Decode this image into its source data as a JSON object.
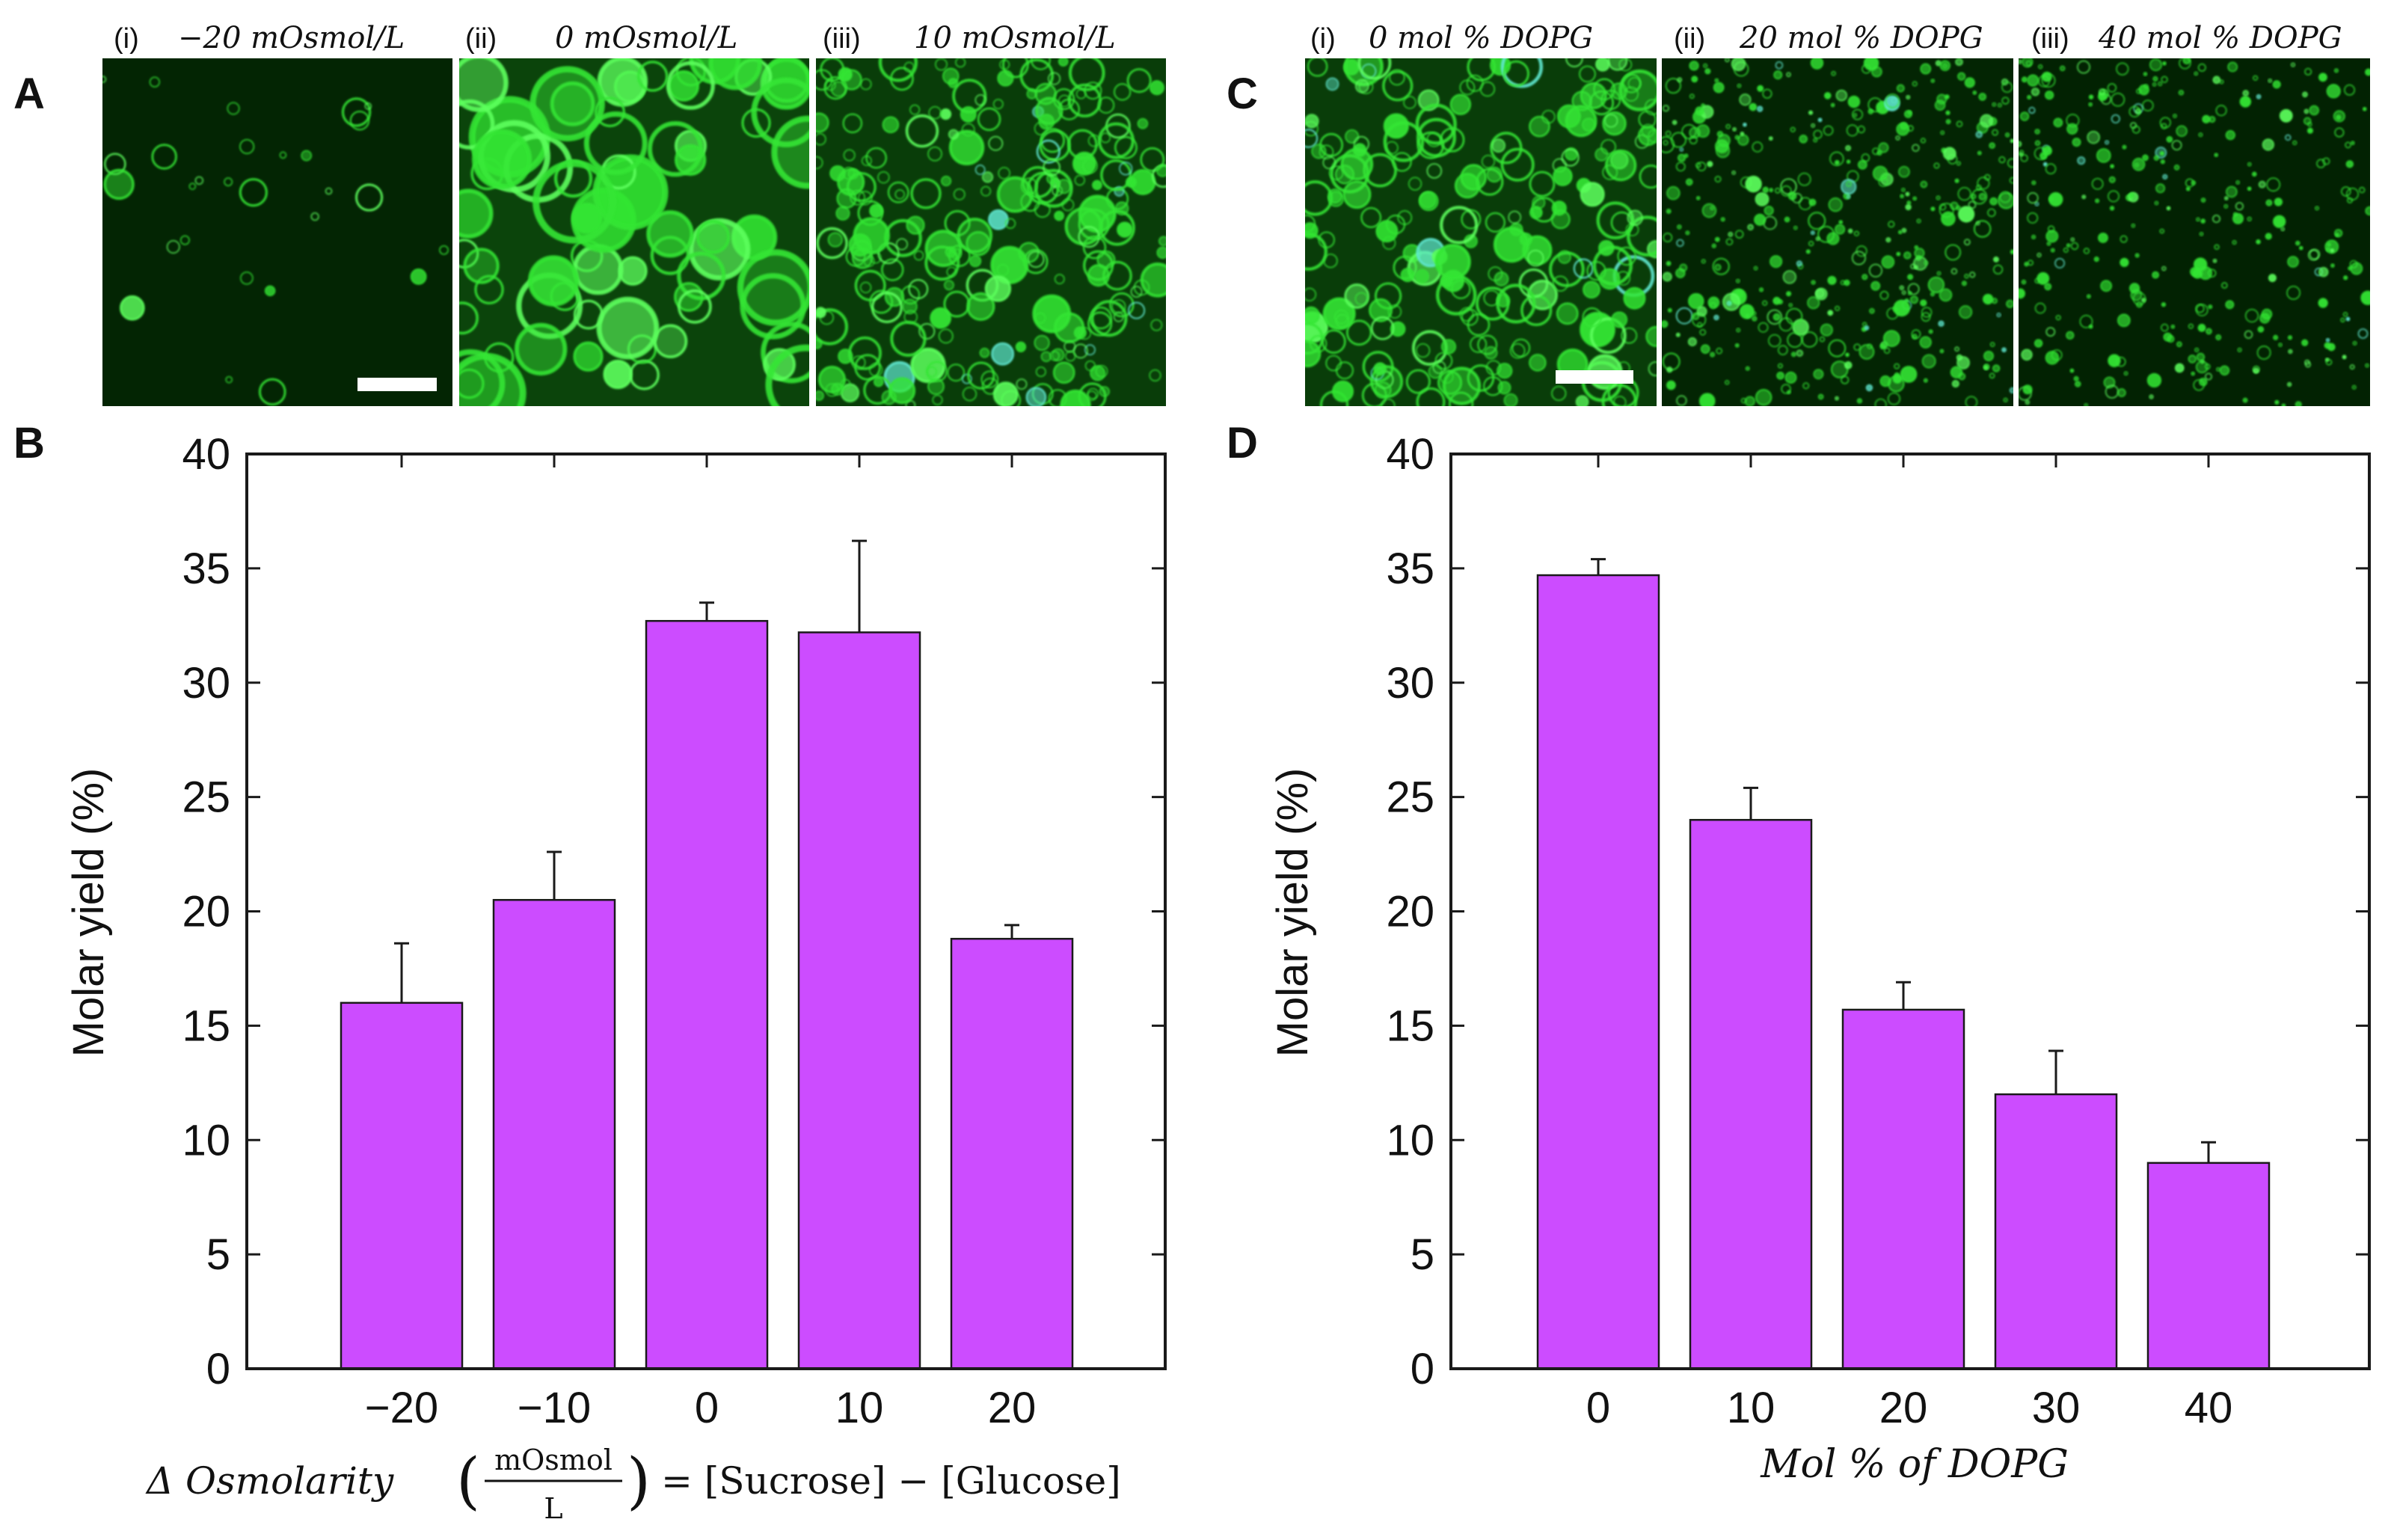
{
  "colors": {
    "bar": "#cc4cff",
    "bar_stroke": "#1a1a1a",
    "axis": "#1a1a1a",
    "micrograph_bg": "#001900",
    "vesicle": "#33e633",
    "vesicle_bright": "#5cff5c",
    "vesicle_cyan": "#5fe8d0",
    "scalebar": "#ffffff"
  },
  "panel_a": {
    "letter": "A",
    "images": [
      {
        "index": "(i)",
        "label": "−20 mOsmol/L"
      },
      {
        "index": "(ii)",
        "label": "0 mOsmol/L"
      },
      {
        "index": "(iii)",
        "label": "10 mOsmol/L"
      }
    ]
  },
  "panel_c": {
    "letter": "C",
    "images": [
      {
        "index": "(i)",
        "label": "0 mol % DOPG"
      },
      {
        "index": "(ii)",
        "label": "20 mol % DOPG"
      },
      {
        "index": "(iii)",
        "label": "40 mol % DOPG"
      }
    ]
  },
  "chart_data": [
    {
      "panel": "B",
      "type": "bar",
      "categories": [
        "−20",
        "−10",
        "0",
        "10",
        "20"
      ],
      "values": [
        16.0,
        20.5,
        32.7,
        32.2,
        18.8
      ],
      "errors": [
        2.6,
        2.1,
        0.8,
        4.0,
        0.6
      ],
      "ylim": [
        0,
        40
      ],
      "yticks": [
        0,
        5,
        10,
        15,
        20,
        25,
        30,
        35,
        40
      ],
      "ylabel": "Molar yield (%)",
      "xlabel": {
        "prefix": "Δ Osmolarity",
        "frac_num": "mOsmol",
        "frac_den": "L",
        "suffix": "= [Sucrose] − [Glucose]"
      }
    },
    {
      "panel": "D",
      "type": "bar",
      "categories": [
        "0",
        "10",
        "20",
        "30",
        "40"
      ],
      "values": [
        34.7,
        24.0,
        15.7,
        12.0,
        9.0
      ],
      "errors": [
        0.7,
        1.4,
        1.2,
        1.9,
        0.9
      ],
      "ylim": [
        0,
        40
      ],
      "yticks": [
        0,
        5,
        10,
        15,
        20,
        25,
        30,
        35,
        40
      ],
      "ylabel": "Molar yield (%)",
      "xlabel": {
        "text": "Mol % of DOPG"
      }
    }
  ]
}
